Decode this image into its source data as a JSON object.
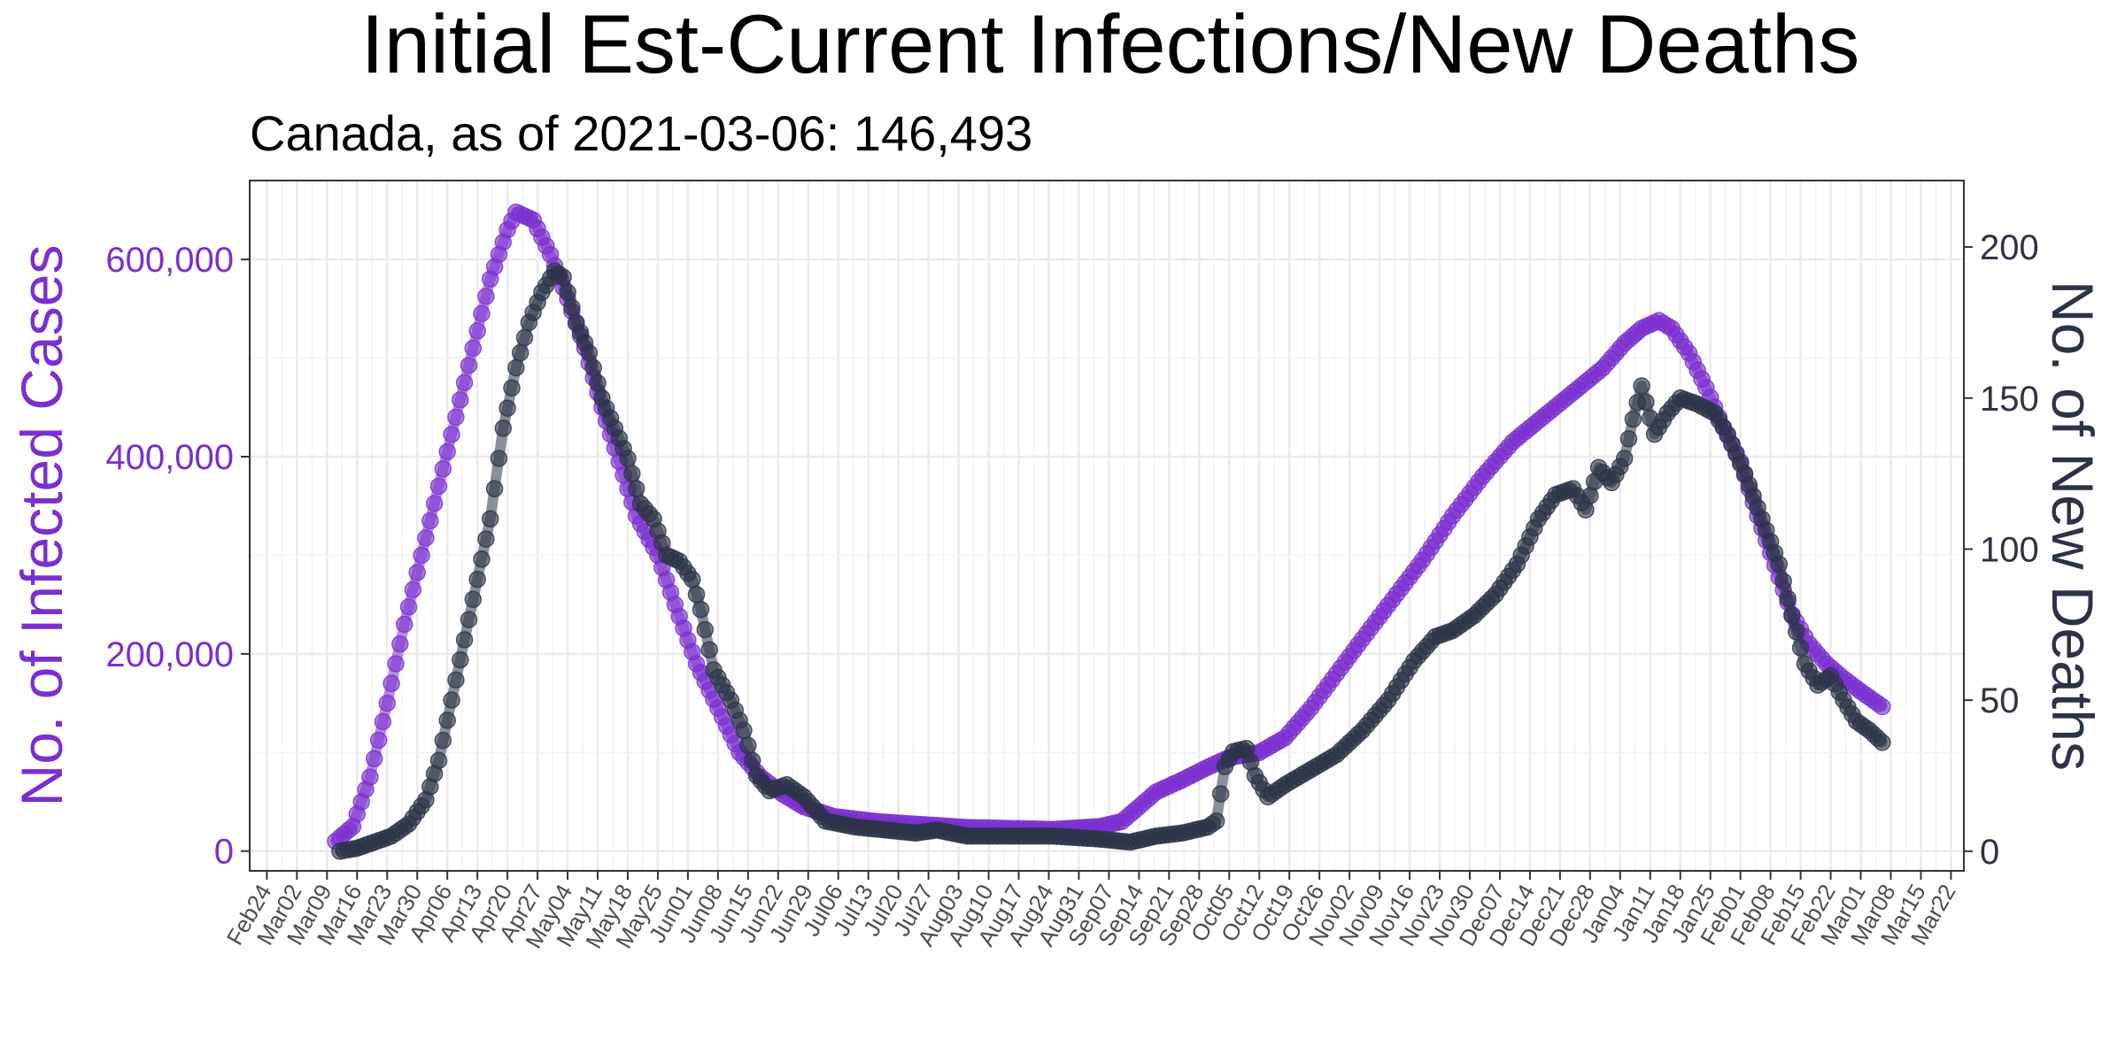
{
  "chart_data": {
    "type": "line",
    "title": "Initial Est-Current Infections/New Deaths",
    "subtitle": "Canada, as of 2021-03-06:  146,493",
    "ylabel_left": "No. of Infected Cases",
    "ylabel_right": "No. of New Deaths",
    "ylim_left": [
      -20000,
      680000
    ],
    "ylim_right": [
      -6.5,
      222
    ],
    "yticks_left": [
      {
        "value": 0,
        "label": "0"
      },
      {
        "value": 200000,
        "label": "200,000"
      },
      {
        "value": 400000,
        "label": "400,000"
      },
      {
        "value": 600000,
        "label": "600,000"
      }
    ],
    "yticks_right": [
      {
        "value": 0,
        "label": "0"
      },
      {
        "value": 50,
        "label": "50"
      },
      {
        "value": 100,
        "label": "100"
      },
      {
        "value": 150,
        "label": "150"
      },
      {
        "value": 200,
        "label": "200"
      }
    ],
    "xlim": [
      "2020-02-20",
      "2021-03-25"
    ],
    "xtick_labels": [
      "Feb24",
      "Mar02",
      "Mar09",
      "Mar16",
      "Mar23",
      "Mar30",
      "Apr06",
      "Apr13",
      "Apr20",
      "Apr27",
      "May04",
      "May11",
      "May18",
      "May25",
      "Jun01",
      "Jun08",
      "Jun15",
      "Jun22",
      "Jun29",
      "Jul06",
      "Jul13",
      "Jul20",
      "Jul27",
      "Aug03",
      "Aug10",
      "Aug17",
      "Aug24",
      "Aug31",
      "Sep07",
      "Sep14",
      "Sep21",
      "Sep28",
      "Oct05",
      "Oct12",
      "Oct19",
      "Oct26",
      "Nov02",
      "Nov09",
      "Nov16",
      "Nov23",
      "Nov30",
      "Dec07",
      "Dec14",
      "Dec21",
      "Dec28",
      "Jan04",
      "Jan11",
      "Jan18",
      "Jan25",
      "Feb01",
      "Feb08",
      "Feb15",
      "Feb22",
      "Mar01",
      "Mar08",
      "Mar15",
      "Mar22"
    ],
    "xtick_first_date": "2020-02-24",
    "xtick_step_days": 7,
    "grid": true,
    "series": [
      {
        "name": "No. of Infected Cases",
        "axis": "left",
        "color": "#7b2fd0",
        "points": [
          [
            "2020-03-11",
            10000
          ],
          [
            "2020-03-15",
            25000
          ],
          [
            "2020-03-19",
            75000
          ],
          [
            "2020-03-23",
            150000
          ],
          [
            "2020-03-27",
            230000
          ],
          [
            "2020-03-31",
            300000
          ],
          [
            "2020-04-04",
            370000
          ],
          [
            "2020-04-08",
            440000
          ],
          [
            "2020-04-12",
            510000
          ],
          [
            "2020-04-16",
            580000
          ],
          [
            "2020-04-20",
            630000
          ],
          [
            "2020-04-22",
            648000
          ],
          [
            "2020-04-26",
            640000
          ],
          [
            "2020-04-30",
            605000
          ],
          [
            "2020-05-04",
            560000
          ],
          [
            "2020-05-08",
            510000
          ],
          [
            "2020-05-12",
            450000
          ],
          [
            "2020-05-16",
            395000
          ],
          [
            "2020-05-20",
            340000
          ],
          [
            "2020-05-25",
            300000
          ],
          [
            "2020-05-29",
            250000
          ],
          [
            "2020-06-03",
            190000
          ],
          [
            "2020-06-08",
            145000
          ],
          [
            "2020-06-13",
            100000
          ],
          [
            "2020-06-18",
            75000
          ],
          [
            "2020-06-23",
            58000
          ],
          [
            "2020-06-28",
            45000
          ],
          [
            "2020-07-05",
            35000
          ],
          [
            "2020-07-15",
            30000
          ],
          [
            "2020-07-25",
            27000
          ],
          [
            "2020-08-05",
            24000
          ],
          [
            "2020-08-15",
            23000
          ],
          [
            "2020-08-25",
            22000
          ],
          [
            "2020-09-05",
            25000
          ],
          [
            "2020-09-10",
            30000
          ],
          [
            "2020-09-14",
            45000
          ],
          [
            "2020-09-18",
            60000
          ],
          [
            "2020-09-24",
            72000
          ],
          [
            "2020-09-30",
            85000
          ],
          [
            "2020-10-05",
            95000
          ],
          [
            "2020-10-12",
            100000
          ],
          [
            "2020-10-18",
            115000
          ],
          [
            "2020-10-24",
            145000
          ],
          [
            "2020-10-30",
            180000
          ],
          [
            "2020-11-05",
            215000
          ],
          [
            "2020-11-12",
            255000
          ],
          [
            "2020-11-19",
            295000
          ],
          [
            "2020-11-26",
            340000
          ],
          [
            "2020-12-03",
            380000
          ],
          [
            "2020-12-10",
            415000
          ],
          [
            "2020-12-17",
            440000
          ],
          [
            "2020-12-24",
            465000
          ],
          [
            "2020-12-31",
            490000
          ],
          [
            "2021-01-05",
            515000
          ],
          [
            "2021-01-09",
            530000
          ],
          [
            "2021-01-13",
            538000
          ],
          [
            "2021-01-16",
            530000
          ],
          [
            "2021-01-20",
            505000
          ],
          [
            "2021-01-24",
            470000
          ],
          [
            "2021-01-28",
            430000
          ],
          [
            "2021-02-01",
            395000
          ],
          [
            "2021-02-05",
            340000
          ],
          [
            "2021-02-09",
            290000
          ],
          [
            "2021-02-13",
            240000
          ],
          [
            "2021-02-17",
            210000
          ],
          [
            "2021-02-21",
            190000
          ],
          [
            "2021-02-25",
            175000
          ],
          [
            "2021-03-01",
            162000
          ],
          [
            "2021-03-06",
            146493
          ]
        ]
      },
      {
        "name": "No. of New Deaths",
        "axis": "right",
        "color": "#2b3347",
        "points": [
          [
            "2020-03-12",
            0
          ],
          [
            "2020-03-16",
            1
          ],
          [
            "2020-03-20",
            3
          ],
          [
            "2020-03-24",
            5
          ],
          [
            "2020-03-28",
            9
          ],
          [
            "2020-04-01",
            17
          ],
          [
            "2020-04-04",
            30
          ],
          [
            "2020-04-07",
            50
          ],
          [
            "2020-04-10",
            70
          ],
          [
            "2020-04-13",
            90
          ],
          [
            "2020-04-16",
            110
          ],
          [
            "2020-04-19",
            140
          ],
          [
            "2020-04-22",
            160
          ],
          [
            "2020-04-25",
            175
          ],
          [
            "2020-04-28",
            185
          ],
          [
            "2020-05-01",
            192
          ],
          [
            "2020-05-03",
            190
          ],
          [
            "2020-05-06",
            175
          ],
          [
            "2020-05-09",
            165
          ],
          [
            "2020-05-12",
            150
          ],
          [
            "2020-05-15",
            140
          ],
          [
            "2020-05-18",
            130
          ],
          [
            "2020-05-21",
            115
          ],
          [
            "2020-05-24",
            110
          ],
          [
            "2020-05-27",
            98
          ],
          [
            "2020-05-30",
            96
          ],
          [
            "2020-06-02",
            90
          ],
          [
            "2020-06-04",
            80
          ],
          [
            "2020-06-07",
            60
          ],
          [
            "2020-06-11",
            50
          ],
          [
            "2020-06-14",
            40
          ],
          [
            "2020-06-17",
            25
          ],
          [
            "2020-06-20",
            20
          ],
          [
            "2020-06-24",
            22
          ],
          [
            "2020-06-28",
            18
          ],
          [
            "2020-07-03",
            10
          ],
          [
            "2020-07-10",
            8
          ],
          [
            "2020-07-17",
            7
          ],
          [
            "2020-07-24",
            6
          ],
          [
            "2020-07-29",
            7
          ],
          [
            "2020-08-05",
            5
          ],
          [
            "2020-08-15",
            5
          ],
          [
            "2020-08-25",
            5
          ],
          [
            "2020-09-05",
            4
          ],
          [
            "2020-09-12",
            3
          ],
          [
            "2020-09-18",
            5
          ],
          [
            "2020-09-24",
            6
          ],
          [
            "2020-09-30",
            8
          ],
          [
            "2020-10-02",
            10
          ],
          [
            "2020-10-04",
            28
          ],
          [
            "2020-10-06",
            33
          ],
          [
            "2020-10-09",
            34
          ],
          [
            "2020-10-11",
            25
          ],
          [
            "2020-10-14",
            18
          ],
          [
            "2020-10-18",
            22
          ],
          [
            "2020-10-24",
            27
          ],
          [
            "2020-10-30",
            32
          ],
          [
            "2020-11-05",
            40
          ],
          [
            "2020-11-11",
            50
          ],
          [
            "2020-11-17",
            63
          ],
          [
            "2020-11-22",
            71
          ],
          [
            "2020-11-26",
            73
          ],
          [
            "2020-12-01",
            78
          ],
          [
            "2020-12-06",
            85
          ],
          [
            "2020-12-11",
            95
          ],
          [
            "2020-12-16",
            110
          ],
          [
            "2020-12-20",
            118
          ],
          [
            "2020-12-24",
            120
          ],
          [
            "2020-12-27",
            113
          ],
          [
            "2020-12-30",
            127
          ],
          [
            "2021-01-02",
            122
          ],
          [
            "2021-01-05",
            130
          ],
          [
            "2021-01-07",
            143
          ],
          [
            "2021-01-09",
            154
          ],
          [
            "2021-01-12",
            138
          ],
          [
            "2021-01-15",
            145
          ],
          [
            "2021-01-18",
            150
          ],
          [
            "2021-01-22",
            148
          ],
          [
            "2021-01-26",
            145
          ],
          [
            "2021-01-29",
            138
          ],
          [
            "2021-02-02",
            125
          ],
          [
            "2021-02-06",
            110
          ],
          [
            "2021-02-10",
            95
          ],
          [
            "2021-02-13",
            78
          ],
          [
            "2021-02-16",
            62
          ],
          [
            "2021-02-19",
            55
          ],
          [
            "2021-02-22",
            58
          ],
          [
            "2021-02-25",
            50
          ],
          [
            "2021-02-28",
            43
          ],
          [
            "2021-03-03",
            40
          ],
          [
            "2021-03-06",
            36
          ]
        ]
      }
    ]
  }
}
